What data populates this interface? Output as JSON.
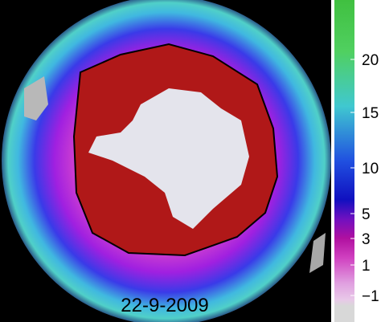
{
  "map": {
    "date_label": "22-9-2009"
  },
  "colorbar": {
    "ticks": [
      20,
      15,
      10,
      5,
      3,
      1,
      {
        "value": -1,
        "label": "−1"
      }
    ]
  }
}
